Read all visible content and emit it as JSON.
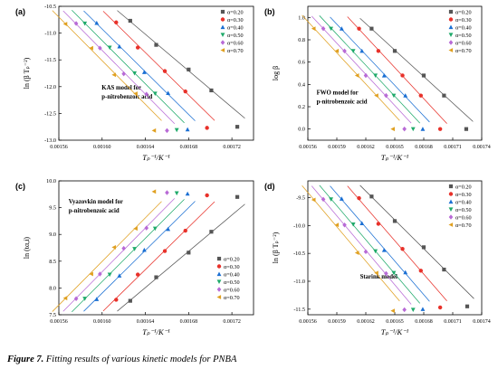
{
  "figure": {
    "caption_label": "Figure 7.",
    "caption_text": "Fitting results of various kinetic models for PNBA"
  },
  "legend_entries": [
    "α=0.20",
    "α=0.30",
    "α=0.40",
    "α=0.50",
    "α=0.60",
    "α=0.70"
  ],
  "series_colors": [
    "#555555",
    "#e8312a",
    "#1a6fd3",
    "#1faa6a",
    "#b86ad6",
    "#e0a020"
  ],
  "marker_shapes": [
    "square",
    "circle",
    "triangle-up",
    "triangle-down",
    "diamond",
    "triangle-left"
  ],
  "chart_data": [
    {
      "id": "a",
      "panel_label": "(a)",
      "type": "scatter",
      "model_text": [
        "KAS model for",
        "p-nitrobenzoic acid"
      ],
      "ylabel": "ln (β Tₚ⁻²)",
      "xlabel": "Tₚ⁻¹/K⁻¹",
      "xlim": [
        0.00156,
        0.00174
      ],
      "ylim": [
        -13.0,
        -10.5
      ],
      "x_ticks": [
        "0.00156",
        "0.00160",
        "0.00164",
        "0.00168",
        "0.00172"
      ],
      "y_ticks": [
        "-10.5",
        "-11.0",
        "-11.5",
        "-12.0",
        "-12.5",
        "-13.0"
      ],
      "legend_position": "top-right",
      "series": [
        {
          "name": "α=0.20",
          "x": [
            0.001626,
            0.00165,
            0.00168,
            0.001701,
            0.001725
          ],
          "y": [
            -10.77,
            -11.22,
            -11.68,
            -12.07,
            -12.75
          ]
        },
        {
          "name": "α=0.30",
          "x": [
            0.001613,
            0.001633,
            0.001658,
            0.001677,
            0.001697
          ],
          "y": [
            -10.8,
            -11.27,
            -11.71,
            -12.09,
            -12.77
          ]
        },
        {
          "name": "α=0.40",
          "x": [
            0.001595,
            0.001616,
            0.001639,
            0.001661,
            0.001679
          ],
          "y": [
            -10.81,
            -11.25,
            -11.73,
            -12.12,
            -12.8
          ]
        },
        {
          "name": "α=0.50",
          "x": [
            0.001584,
            0.001607,
            0.00163,
            0.001649,
            0.001669
          ],
          "y": [
            -10.82,
            -11.27,
            -11.75,
            -12.13,
            -12.81
          ]
        },
        {
          "name": "α=0.60",
          "x": [
            0.001576,
            0.001598,
            0.00162,
            0.001641,
            0.00166
          ],
          "y": [
            -10.82,
            -11.28,
            -11.76,
            -12.14,
            -12.82
          ]
        },
        {
          "name": "α=0.70",
          "x": [
            0.001566,
            0.00159,
            0.001611,
            0.001631,
            0.001648
          ],
          "y": [
            -10.83,
            -11.28,
            -11.78,
            -12.13,
            -12.82
          ]
        }
      ]
    },
    {
      "id": "b",
      "panel_label": "(b)",
      "type": "scatter",
      "model_text": [
        "FWO model for",
        "p-nitrobenzoic acid"
      ],
      "ylabel": "log β",
      "xlabel": "Tₚ⁻¹/K⁻¹",
      "xlim": [
        0.00156,
        0.00174
      ],
      "ylim": [
        -0.1,
        1.1
      ],
      "x_ticks": [
        "0.00156",
        "0.00159",
        "0.00162",
        "0.00165",
        "0.00168",
        "0.00171",
        "0.00174"
      ],
      "y_ticks": [
        "0.0",
        "0.2",
        "0.4",
        "0.6",
        "0.8",
        "1.0"
      ],
      "legend_position": "top-right",
      "series": [
        {
          "name": "α=0.20",
          "x": [
            0.001626,
            0.00165,
            0.00168,
            0.001701,
            0.001724
          ],
          "y": [
            0.9,
            0.7,
            0.48,
            0.3,
            0.0
          ]
        },
        {
          "name": "α=0.30",
          "x": [
            0.001613,
            0.001633,
            0.001658,
            0.001677,
            0.001697
          ],
          "y": [
            0.9,
            0.7,
            0.48,
            0.3,
            0.0
          ]
        },
        {
          "name": "α=0.40",
          "x": [
            0.001595,
            0.001616,
            0.001639,
            0.001661,
            0.001679
          ],
          "y": [
            0.9,
            0.7,
            0.48,
            0.3,
            0.0
          ]
        },
        {
          "name": "α=0.50",
          "x": [
            0.001584,
            0.001607,
            0.00163,
            0.001649,
            0.001669
          ],
          "y": [
            0.9,
            0.7,
            0.48,
            0.3,
            0.0
          ]
        },
        {
          "name": "α=0.60",
          "x": [
            0.001576,
            0.001598,
            0.00162,
            0.001641,
            0.00166
          ],
          "y": [
            0.9,
            0.7,
            0.48,
            0.3,
            0.0
          ]
        },
        {
          "name": "α=0.70",
          "x": [
            0.001566,
            0.00159,
            0.001611,
            0.001631,
            0.001648
          ],
          "y": [
            0.9,
            0.7,
            0.48,
            0.3,
            0.0
          ]
        }
      ]
    },
    {
      "id": "c",
      "panel_label": "(c)",
      "type": "scatter",
      "model_text": [
        "Vyazovkin model for",
        "p-nitrobenzoic acid"
      ],
      "ylabel": "ln (tα,i)",
      "xlabel": "Tₚ⁻¹/K⁻¹",
      "xlim": [
        0.00156,
        0.00174
      ],
      "ylim": [
        7.5,
        10.0
      ],
      "x_ticks": [
        "0.00156",
        "0.00160",
        "0.00164",
        "0.00168",
        "0.00172"
      ],
      "y_ticks": [
        "7.5",
        "8.0",
        "8.5",
        "9.0",
        "9.5",
        "10.0"
      ],
      "legend_position": "bottom-right",
      "series": [
        {
          "name": "α=0.20",
          "x": [
            0.001626,
            0.00165,
            0.00168,
            0.001701,
            0.001725
          ],
          "y": [
            7.76,
            8.2,
            8.66,
            9.05,
            9.7
          ]
        },
        {
          "name": "α=0.30",
          "x": [
            0.001613,
            0.001633,
            0.001658,
            0.001677,
            0.001697
          ],
          "y": [
            7.78,
            8.25,
            8.69,
            9.07,
            9.73
          ]
        },
        {
          "name": "α=0.40",
          "x": [
            0.001595,
            0.001616,
            0.001639,
            0.001661,
            0.001679
          ],
          "y": [
            7.79,
            8.23,
            8.71,
            9.1,
            9.76
          ]
        },
        {
          "name": "α=0.50",
          "x": [
            0.001584,
            0.001607,
            0.00163,
            0.001649,
            0.001669
          ],
          "y": [
            7.8,
            8.25,
            8.73,
            9.11,
            9.77
          ]
        },
        {
          "name": "α=0.60",
          "x": [
            0.001576,
            0.001598,
            0.00162,
            0.001641,
            0.00166
          ],
          "y": [
            7.8,
            8.26,
            8.74,
            9.12,
            9.78
          ]
        },
        {
          "name": "α=0.70",
          "x": [
            0.001566,
            0.00159,
            0.001611,
            0.001631,
            0.001648
          ],
          "y": [
            7.81,
            8.26,
            8.76,
            9.11,
            9.8
          ]
        }
      ]
    },
    {
      "id": "d",
      "panel_label": "(d)",
      "type": "scatter",
      "model_text": [
        "Starink model"
      ],
      "ylabel": "ln (β Tₚ⁻²)",
      "xlabel": "Tₚ⁻¹/K⁻¹",
      "xlim": [
        0.00156,
        0.00174
      ],
      "ylim": [
        -11.6,
        -9.2
      ],
      "x_ticks": [
        "0.00156",
        "0.00159",
        "0.00162",
        "0.00165",
        "0.00168",
        "0.00171",
        "0.00174"
      ],
      "y_ticks": [
        "-9.5",
        "-10.0",
        "-10.5",
        "-11.0",
        "-11.5"
      ],
      "legend_position": "top-right",
      "series": [
        {
          "name": "α=0.20",
          "x": [
            0.001626,
            0.00165,
            0.00168,
            0.001701,
            0.001725
          ],
          "y": [
            -9.48,
            -9.92,
            -10.39,
            -10.79,
            -11.45
          ]
        },
        {
          "name": "α=0.30",
          "x": [
            0.001613,
            0.001633,
            0.001658,
            0.001677,
            0.001697
          ],
          "y": [
            -9.51,
            -9.97,
            -10.42,
            -10.81,
            -11.47
          ]
        },
        {
          "name": "α=0.40",
          "x": [
            0.001595,
            0.001616,
            0.001639,
            0.001661,
            0.001679
          ],
          "y": [
            -9.52,
            -9.96,
            -10.44,
            -10.84,
            -11.5
          ]
        },
        {
          "name": "α=0.50",
          "x": [
            0.001584,
            0.001607,
            0.00163,
            0.001649,
            0.001669
          ],
          "y": [
            -9.53,
            -9.98,
            -10.46,
            -10.85,
            -11.51
          ]
        },
        {
          "name": "α=0.60",
          "x": [
            0.001576,
            0.001598,
            0.00162,
            0.001641,
            0.00166
          ],
          "y": [
            -9.53,
            -9.99,
            -10.47,
            -10.86,
            -11.51
          ]
        },
        {
          "name": "α=0.70",
          "x": [
            0.001566,
            0.00159,
            0.001611,
            0.001631,
            0.001648
          ],
          "y": [
            -9.54,
            -9.99,
            -10.49,
            -10.85,
            -11.53
          ]
        }
      ]
    }
  ]
}
